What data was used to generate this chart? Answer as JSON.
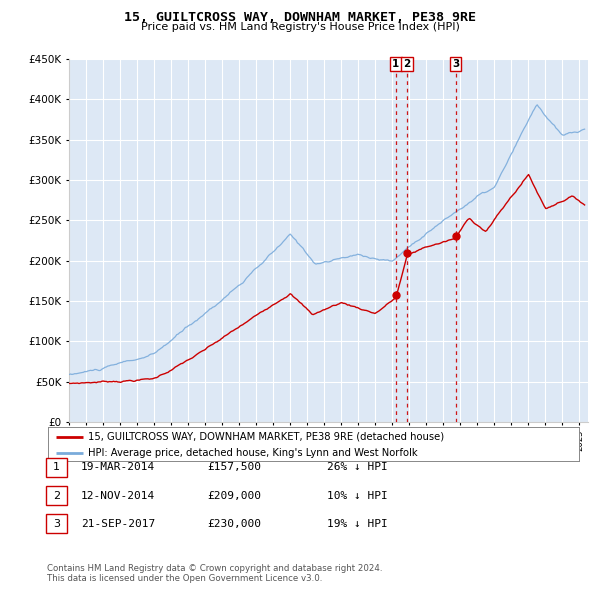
{
  "title": "15, GUILTCROSS WAY, DOWNHAM MARKET, PE38 9RE",
  "subtitle": "Price paid vs. HM Land Registry's House Price Index (HPI)",
  "legend_label_red": "15, GUILTCROSS WAY, DOWNHAM MARKET, PE38 9RE (detached house)",
  "legend_label_blue": "HPI: Average price, detached house, King's Lynn and West Norfolk",
  "footer_line1": "Contains HM Land Registry data © Crown copyright and database right 2024.",
  "footer_line2": "This data is licensed under the Open Government Licence v3.0.",
  "transactions": [
    {
      "label": "1",
      "date": "19-MAR-2014",
      "price": "£157,500",
      "change": "26% ↓ HPI",
      "year": 2014.21,
      "price_val": 157500
    },
    {
      "label": "2",
      "date": "12-NOV-2014",
      "price": "£209,000",
      "change": "10% ↓ HPI",
      "year": 2014.87,
      "price_val": 209000
    },
    {
      "label": "3",
      "date": "21-SEP-2017",
      "price": "£230,000",
      "change": "19% ↓ HPI",
      "year": 2017.72,
      "price_val": 230000
    }
  ],
  "ylim": [
    0,
    450000
  ],
  "xlim": [
    1995,
    2025.5
  ],
  "yticks": [
    0,
    50000,
    100000,
    150000,
    200000,
    250000,
    300000,
    350000,
    400000,
    450000
  ],
  "background_color": "#ffffff",
  "plot_bg_color": "#dde8f5",
  "grid_color": "#ffffff",
  "red_color": "#cc0000",
  "blue_color": "#7aabdb",
  "vline_color": "#cc0000"
}
